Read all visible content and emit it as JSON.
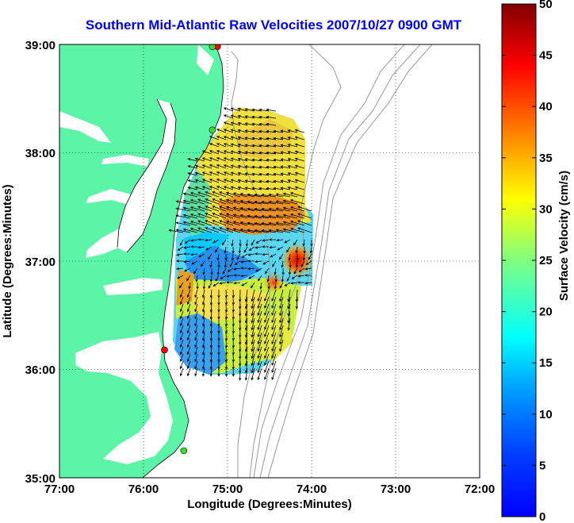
{
  "map": {
    "title": "Southern Mid-Atlantic Raw Velocities 2007/10/27 0900 GMT",
    "xlabel": "Longitude (Degrees:Minutes)",
    "ylabel": "Latitude (Degrees:Minutes)",
    "xticks": [
      "77:00",
      "76:00",
      "75:00",
      "74:00",
      "73:00",
      "72:00"
    ],
    "yticks": [
      "39:00",
      "38:00",
      "37:00",
      "36:00",
      "35:00"
    ],
    "lon_range": [
      -77,
      -72
    ],
    "lat_range": [
      35,
      39
    ],
    "grid": "dotted",
    "land_color": "#5cf5a8",
    "ocean_color": "#ffffff",
    "stations": [
      {
        "lon": -75.12,
        "lat": 38.98,
        "color": "#ff0000"
      },
      {
        "lon": -75.18,
        "lat": 38.98,
        "color": "#33dd33"
      },
      {
        "lon": -75.18,
        "lat": 38.21,
        "color": "#33dd33"
      },
      {
        "lon": -75.75,
        "lat": 36.18,
        "color": "#ff0000"
      },
      {
        "lon": -75.52,
        "lat": 35.25,
        "color": "#33dd33"
      }
    ]
  },
  "colorbar": {
    "label": "Surface Velocity (cm/s)",
    "min": 0,
    "max": 50,
    "ticks": [
      "50",
      "45",
      "40",
      "35",
      "30",
      "25",
      "20",
      "15",
      "10",
      "5",
      "0"
    ],
    "colormap": "jet"
  }
}
